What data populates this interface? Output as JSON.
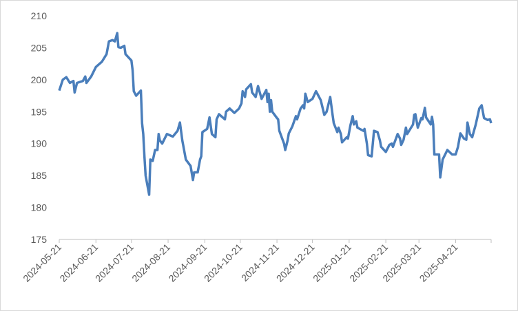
{
  "chart_data": {
    "type": "line",
    "color": "#4a7ebb",
    "x": [
      "2024-05-21",
      "2024-05-24",
      "2024-05-27",
      "2024-05-30",
      "2024-06-02",
      "2024-06-03",
      "2024-06-05",
      "2024-06-10",
      "2024-06-12",
      "2024-06-13",
      "2024-06-17",
      "2024-06-21",
      "2024-06-26",
      "2024-06-30",
      "2024-07-02",
      "2024-07-05",
      "2024-07-07",
      "2024-07-09",
      "2024-07-10",
      "2024-07-12",
      "2024-07-15",
      "2024-07-16",
      "2024-07-21",
      "2024-07-22",
      "2024-07-23",
      "2024-07-25",
      "2024-07-29",
      "2024-07-30",
      "2024-07-31",
      "2024-08-01",
      "2024-08-02",
      "2024-08-05",
      "2024-08-06",
      "2024-08-08",
      "2024-08-10",
      "2024-08-12",
      "2024-08-13",
      "2024-08-14",
      "2024-08-16",
      "2024-08-20",
      "2024-08-25",
      "2024-08-29",
      "2024-08-31",
      "2024-09-02",
      "2024-09-03",
      "2024-09-05",
      "2024-09-09",
      "2024-09-11",
      "2024-09-12",
      "2024-09-15",
      "2024-09-17",
      "2024-09-18",
      "2024-09-19",
      "2024-09-23",
      "2024-09-25",
      "2024-09-27",
      "2024-09-30",
      "2024-10-01",
      "2024-10-03",
      "2024-10-08",
      "2024-10-09",
      "2024-10-12",
      "2024-10-16",
      "2024-10-20",
      "2024-10-22",
      "2024-10-23",
      "2024-10-25",
      "2024-10-26",
      "2024-10-30",
      "2024-10-31",
      "2024-11-03",
      "2024-11-05",
      "2024-11-08",
      "2024-11-12",
      "2024-11-13",
      "2024-11-14",
      "2024-11-15",
      "2024-11-16",
      "2024-11-17",
      "2024-11-21",
      "2024-11-22",
      "2024-11-23",
      "2024-11-27",
      "2024-11-28",
      "2024-11-30",
      "2024-12-01",
      "2024-12-04",
      "2024-12-07",
      "2024-12-08",
      "2024-12-11",
      "2024-12-13",
      "2024-12-14",
      "2024-12-15",
      "2024-12-17",
      "2024-12-21",
      "2024-12-24",
      "2024-12-28",
      "2024-12-31",
      "2025-01-02",
      "2025-01-05",
      "2025-01-07",
      "2025-01-08",
      "2025-01-11",
      "2025-01-12",
      "2025-01-14",
      "2025-01-15",
      "2025-01-19",
      "2025-01-20",
      "2025-01-22",
      "2025-01-24",
      "2025-01-25",
      "2025-01-27",
      "2025-01-28",
      "2025-02-02",
      "2025-02-03",
      "2025-02-05",
      "2025-02-06",
      "2025-02-09",
      "2025-02-11",
      "2025-02-14",
      "2025-02-16",
      "2025-02-17",
      "2025-02-21",
      "2025-02-24",
      "2025-02-26",
      "2025-02-27",
      "2025-03-03",
      "2025-03-05",
      "2025-03-06",
      "2025-03-08",
      "2025-03-10",
      "2025-03-11",
      "2025-03-16",
      "2025-03-17",
      "2025-03-18",
      "2025-03-20",
      "2025-03-23",
      "2025-03-24",
      "2025-03-26",
      "2025-03-27",
      "2025-03-31",
      "2025-04-01",
      "2025-04-02",
      "2025-04-03",
      "2025-04-07",
      "2025-04-08",
      "2025-04-10",
      "2025-04-14",
      "2025-04-18",
      "2025-04-21",
      "2025-04-23",
      "2025-04-25",
      "2025-04-28",
      "2025-04-30",
      "2025-05-01",
      "2025-05-03",
      "2025-05-05",
      "2025-05-08",
      "2025-05-11",
      "2025-05-13",
      "2025-05-15",
      "2025-05-18",
      "2025-05-20",
      "2025-05-21"
    ],
    "values": [
      198.3,
      200,
      200.4,
      199.5,
      199.8,
      198,
      199.5,
      199.8,
      200.5,
      199.5,
      200.5,
      202,
      202.8,
      204,
      206,
      206.2,
      206,
      207.3,
      205.1,
      205,
      205.3,
      204,
      203,
      201.5,
      198.2,
      197.5,
      198.3,
      193.2,
      191.5,
      188,
      185,
      182,
      187.5,
      187.3,
      189,
      189,
      191.5,
      190.5,
      190,
      191.5,
      191.1,
      192,
      193.3,
      190.5,
      189.5,
      187.5,
      186.5,
      184.3,
      185.5,
      185.5,
      187.5,
      188,
      191.8,
      192.3,
      194.1,
      191.5,
      191,
      193.8,
      194.6,
      193.8,
      195,
      195.5,
      194.8,
      195.5,
      196.3,
      198.2,
      197.3,
      198.5,
      199.3,
      198,
      197.3,
      199,
      197,
      198.4,
      196.5,
      197.8,
      195,
      196.8,
      195,
      194,
      193.8,
      192,
      190,
      189,
      190.5,
      191.6,
      192.7,
      194.3,
      193.8,
      195.5,
      196,
      195.5,
      197.8,
      196.5,
      197,
      198.2,
      196.8,
      194.5,
      195,
      197.3,
      194.5,
      193.2,
      191.8,
      192.5,
      191.5,
      190.2,
      191,
      190.8,
      192.8,
      194.3,
      193,
      193.5,
      192.5,
      192,
      192.3,
      190,
      188.2,
      188,
      192,
      191.8,
      190.5,
      189.5,
      188.7,
      189.8,
      190,
      189.5,
      191.5,
      190.8,
      189.8,
      190.6,
      192.5,
      191.5,
      193,
      194.5,
      194.6,
      192.5,
      194,
      193.8,
      195.6,
      194.1,
      193,
      194.2,
      193,
      188.3,
      188.3,
      184.7,
      187.5,
      189,
      188.3,
      188.3,
      189.5,
      191.6,
      190.8,
      190.6,
      193.3,
      191.5,
      191,
      193,
      195.5,
      196,
      194,
      193.7,
      193.8,
      193.2
    ],
    "xlim": [
      "2024-05-21",
      "2025-05-21"
    ],
    "xticks": [
      "2024-05-21",
      "2024-06-21",
      "2024-07-21",
      "2024-08-21",
      "2024-09-21",
      "2024-10-21",
      "2024-11-21",
      "2024-12-21",
      "2025-01-21",
      "2025-02-21",
      "2025-03-21",
      "2025-04-21"
    ],
    "ylim": [
      175,
      210
    ],
    "yticks": [
      175,
      180,
      185,
      190,
      195,
      200,
      205,
      210
    ],
    "grid": false
  }
}
